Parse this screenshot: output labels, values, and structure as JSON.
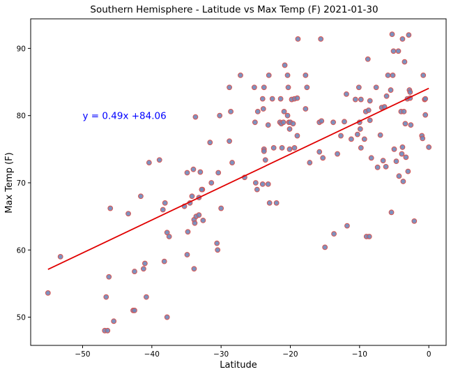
{
  "chart_data": {
    "type": "scatter",
    "title": "Southern Hemisphere - Latitude vs Max Temp (F) 2021-01-30",
    "xlabel": "Latitude",
    "ylabel": "Max Temp (F)",
    "xlim": [
      -57.5,
      2.5
    ],
    "ylim": [
      45.8,
      94.4
    ],
    "xticks": [
      -50,
      -40,
      -30,
      -20,
      -10,
      0
    ],
    "xtick_labels": [
      "−50",
      "−40",
      "−30",
      "−20",
      "−10",
      "0"
    ],
    "yticks": [
      50,
      60,
      70,
      80,
      90
    ],
    "ytick_labels": [
      "50",
      "60",
      "70",
      "80",
      "90"
    ],
    "grid": false,
    "annotation": {
      "text": "y = 0.49x +84.06",
      "x": -50,
      "y": 80
    },
    "regression": {
      "slope": 0.49,
      "intercept": 84.06,
      "x_start": -55,
      "x_end": 0
    },
    "colors": {
      "point_fill": "#6f86b8",
      "point_edge": "#d9534f",
      "line": "#e00000",
      "annotation": "#0000ff"
    },
    "points": [
      {
        "x": -55,
        "y": 53.6
      },
      {
        "x": -53.2,
        "y": 59
      },
      {
        "x": -46.8,
        "y": 48
      },
      {
        "x": -46.4,
        "y": 48
      },
      {
        "x": -46.6,
        "y": 53
      },
      {
        "x": -46.2,
        "y": 56
      },
      {
        "x": -45.5,
        "y": 49.4
      },
      {
        "x": -46,
        "y": 66.2
      },
      {
        "x": -43.4,
        "y": 65.4
      },
      {
        "x": -42.7,
        "y": 51
      },
      {
        "x": -42.5,
        "y": 51
      },
      {
        "x": -42.5,
        "y": 56.8
      },
      {
        "x": -41.6,
        "y": 68
      },
      {
        "x": -41.2,
        "y": 57.2
      },
      {
        "x": -41,
        "y": 58
      },
      {
        "x": -40.8,
        "y": 53
      },
      {
        "x": -40.4,
        "y": 73
      },
      {
        "x": -38.9,
        "y": 73.4
      },
      {
        "x": -38.4,
        "y": 66
      },
      {
        "x": -38.1,
        "y": 67
      },
      {
        "x": -37.8,
        "y": 62.6
      },
      {
        "x": -38.2,
        "y": 58.3
      },
      {
        "x": -37.8,
        "y": 50
      },
      {
        "x": -37.5,
        "y": 62
      },
      {
        "x": -35.3,
        "y": 66.5
      },
      {
        "x": -34.9,
        "y": 71.5
      },
      {
        "x": -34.8,
        "y": 62.7
      },
      {
        "x": -34.9,
        "y": 59.3
      },
      {
        "x": -34.5,
        "y": 67
      },
      {
        "x": -34.2,
        "y": 68
      },
      {
        "x": -34,
        "y": 72
      },
      {
        "x": -33.9,
        "y": 64.5
      },
      {
        "x": -33.8,
        "y": 64
      },
      {
        "x": -33.9,
        "y": 57.2
      },
      {
        "x": -33.7,
        "y": 79.8
      },
      {
        "x": -33.6,
        "y": 65
      },
      {
        "x": -33.2,
        "y": 67.8
      },
      {
        "x": -33,
        "y": 71.6
      },
      {
        "x": -33.2,
        "y": 65.2
      },
      {
        "x": -32.7,
        "y": 69
      },
      {
        "x": -32.6,
        "y": 64.4
      },
      {
        "x": -32.8,
        "y": 69
      },
      {
        "x": -31.6,
        "y": 76
      },
      {
        "x": -31.4,
        "y": 70
      },
      {
        "x": -30.6,
        "y": 61
      },
      {
        "x": -30.5,
        "y": 60
      },
      {
        "x": -30.4,
        "y": 71.5
      },
      {
        "x": -30.2,
        "y": 80
      },
      {
        "x": -30,
        "y": 66.2
      },
      {
        "x": -28.8,
        "y": 84.2
      },
      {
        "x": -28.6,
        "y": 80.6
      },
      {
        "x": -28.8,
        "y": 76.2
      },
      {
        "x": -28.4,
        "y": 73
      },
      {
        "x": -27.2,
        "y": 86
      },
      {
        "x": -26.6,
        "y": 70.8
      },
      {
        "x": -25.2,
        "y": 84.2
      },
      {
        "x": -25.1,
        "y": 79
      },
      {
        "x": -25,
        "y": 70
      },
      {
        "x": -24.8,
        "y": 69
      },
      {
        "x": -24.7,
        "y": 80.6
      },
      {
        "x": -24,
        "y": 82.5
      },
      {
        "x": -23.9,
        "y": 81
      },
      {
        "x": -23.8,
        "y": 84.2
      },
      {
        "x": -23.8,
        "y": 75
      },
      {
        "x": -23.8,
        "y": 74.7
      },
      {
        "x": -23.6,
        "y": 73.4
      },
      {
        "x": -24,
        "y": 69.8
      },
      {
        "x": -23.1,
        "y": 86
      },
      {
        "x": -23.2,
        "y": 78.6
      },
      {
        "x": -23.2,
        "y": 69.8
      },
      {
        "x": -23,
        "y": 67
      },
      {
        "x": -22.6,
        "y": 82.5
      },
      {
        "x": -22.4,
        "y": 75.2
      },
      {
        "x": -22,
        "y": 67
      },
      {
        "x": -21.5,
        "y": 79
      },
      {
        "x": -21.3,
        "y": 78.8
      },
      {
        "x": -21,
        "y": 79
      },
      {
        "x": -21.2,
        "y": 75.2
      },
      {
        "x": -21.4,
        "y": 82.5
      },
      {
        "x": -20.9,
        "y": 80.6
      },
      {
        "x": -20.8,
        "y": 87.5
      },
      {
        "x": -20.4,
        "y": 86
      },
      {
        "x": -20.3,
        "y": 84.2
      },
      {
        "x": -20.4,
        "y": 80
      },
      {
        "x": -20.2,
        "y": 79
      },
      {
        "x": -20.1,
        "y": 78
      },
      {
        "x": -20.1,
        "y": 75
      },
      {
        "x": -20,
        "y": 79
      },
      {
        "x": -19.8,
        "y": 82.4
      },
      {
        "x": -19.6,
        "y": 78.8
      },
      {
        "x": -19.4,
        "y": 82.5
      },
      {
        "x": -19.4,
        "y": 75.2
      },
      {
        "x": -19,
        "y": 82.6
      },
      {
        "x": -18.9,
        "y": 91.4
      },
      {
        "x": -19,
        "y": 77
      },
      {
        "x": -17.8,
        "y": 86
      },
      {
        "x": -17.8,
        "y": 81
      },
      {
        "x": -17.6,
        "y": 84.2
      },
      {
        "x": -17.2,
        "y": 73
      },
      {
        "x": -15.8,
        "y": 79
      },
      {
        "x": -15.8,
        "y": 74.6
      },
      {
        "x": -15.6,
        "y": 91.4
      },
      {
        "x": -15.5,
        "y": 79.2
      },
      {
        "x": -15.3,
        "y": 73.7
      },
      {
        "x": -15,
        "y": 60.4
      },
      {
        "x": -13.8,
        "y": 79
      },
      {
        "x": -13.7,
        "y": 62.4
      },
      {
        "x": -13.2,
        "y": 74.3
      },
      {
        "x": -12.7,
        "y": 77
      },
      {
        "x": -12.2,
        "y": 79.1
      },
      {
        "x": -11.9,
        "y": 83.2
      },
      {
        "x": -11.8,
        "y": 63.6
      },
      {
        "x": -11.2,
        "y": 76.5
      },
      {
        "x": -10.6,
        "y": 82.4
      },
      {
        "x": -10.3,
        "y": 77.2
      },
      {
        "x": -10.1,
        "y": 84.2
      },
      {
        "x": -10,
        "y": 79
      },
      {
        "x": -9.8,
        "y": 82.4
      },
      {
        "x": -9.8,
        "y": 75.2
      },
      {
        "x": -9.9,
        "y": 78
      },
      {
        "x": -9.3,
        "y": 76.5
      },
      {
        "x": -9.1,
        "y": 80.6
      },
      {
        "x": -9,
        "y": 62
      },
      {
        "x": -8.8,
        "y": 88.4
      },
      {
        "x": -8.7,
        "y": 80.8
      },
      {
        "x": -8.6,
        "y": 62
      },
      {
        "x": -8.5,
        "y": 79.3
      },
      {
        "x": -8.5,
        "y": 82.2
      },
      {
        "x": -8.3,
        "y": 73.7
      },
      {
        "x": -7.6,
        "y": 84.2
      },
      {
        "x": -7.4,
        "y": 72.3
      },
      {
        "x": -7.0,
        "y": 77.1
      },
      {
        "x": -6.8,
        "y": 81.2
      },
      {
        "x": -6.6,
        "y": 73.3
      },
      {
        "x": -6.4,
        "y": 81.3
      },
      {
        "x": -6.2,
        "y": 72.4
      },
      {
        "x": -6.1,
        "y": 82.9
      },
      {
        "x": -5.9,
        "y": 86
      },
      {
        "x": -5.5,
        "y": 83.8
      },
      {
        "x": -5.3,
        "y": 92.1
      },
      {
        "x": -5.4,
        "y": 65.6
      },
      {
        "x": -5.1,
        "y": 89.6
      },
      {
        "x": -5.2,
        "y": 86
      },
      {
        "x": -5.0,
        "y": 75
      },
      {
        "x": -4.7,
        "y": 73.2
      },
      {
        "x": -4.4,
        "y": 89.6
      },
      {
        "x": -4.3,
        "y": 71
      },
      {
        "x": -4.0,
        "y": 80.6
      },
      {
        "x": -3.9,
        "y": 74.3
      },
      {
        "x": -3.8,
        "y": 75.3
      },
      {
        "x": -3.8,
        "y": 91.4
      },
      {
        "x": -3.7,
        "y": 70.2
      },
      {
        "x": -3.6,
        "y": 80.6
      },
      {
        "x": -3.5,
        "y": 88
      },
      {
        "x": -3.4,
        "y": 78.8
      },
      {
        "x": -3.3,
        "y": 73.8
      },
      {
        "x": -3.1,
        "y": 82.5
      },
      {
        "x": -3.0,
        "y": 71.7
      },
      {
        "x": -2.9,
        "y": 92
      },
      {
        "x": -2.8,
        "y": 83.8
      },
      {
        "x": -2.7,
        "y": 83.5
      },
      {
        "x": -2.7,
        "y": 82.6
      },
      {
        "x": -2.6,
        "y": 78.6
      },
      {
        "x": -2.1,
        "y": 64.3
      },
      {
        "x": -1,
        "y": 77
      },
      {
        "x": -0.9,
        "y": 76.6
      },
      {
        "x": -0.8,
        "y": 86
      },
      {
        "x": -0.6,
        "y": 82.4
      },
      {
        "x": -0.5,
        "y": 82.5
      },
      {
        "x": -0.5,
        "y": 80.1
      },
      {
        "x": 0,
        "y": 75.3
      }
    ]
  }
}
